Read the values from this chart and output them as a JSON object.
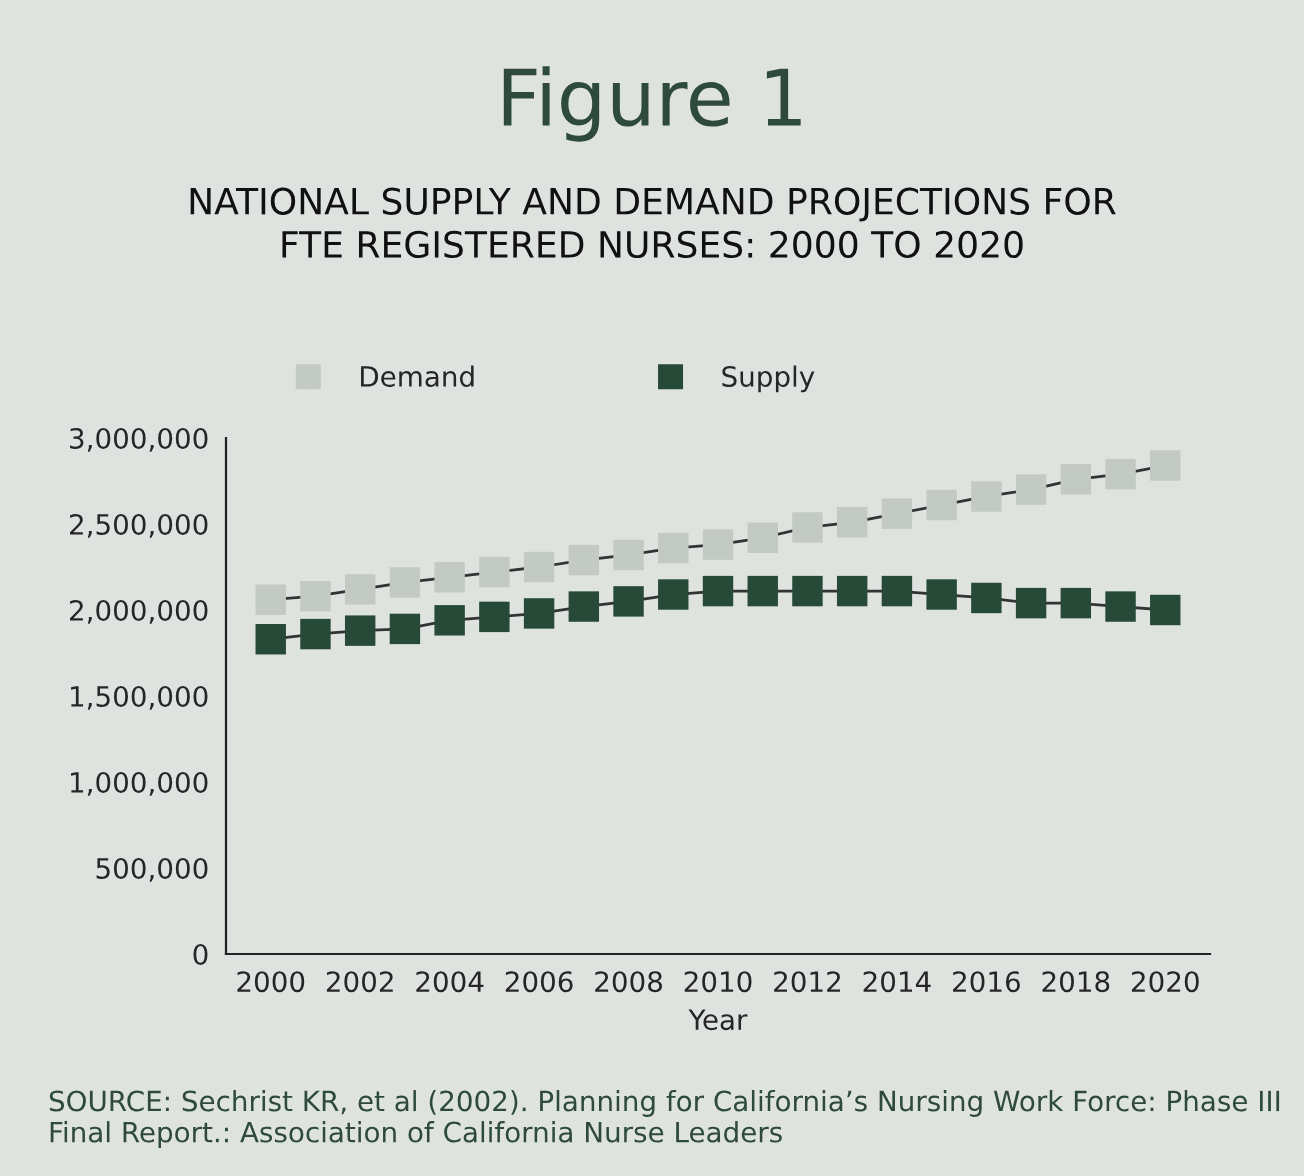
{
  "chart_data": {
    "type": "line",
    "title": "Figure 1",
    "subtitle": "NATIONAL SUPPLY AND DEMAND PROJECTIONS FOR\nFTE REGISTERED NURSES: 2000 TO 2020",
    "xlabel": "Year",
    "x": [
      2000,
      2001,
      2002,
      2003,
      2004,
      2005,
      2006,
      2007,
      2008,
      2009,
      2010,
      2011,
      2012,
      2013,
      2014,
      2015,
      2016,
      2017,
      2018,
      2019,
      2020
    ],
    "series": [
      {
        "name": "Demand",
        "color": "#c3c9c3",
        "values": [
          2060000,
          2080000,
          2120000,
          2160000,
          2190000,
          2220000,
          2250000,
          2290000,
          2320000,
          2360000,
          2380000,
          2420000,
          2480000,
          2510000,
          2560000,
          2610000,
          2660000,
          2700000,
          2760000,
          2790000,
          2840000
        ]
      },
      {
        "name": "Supply",
        "color": "#274a38",
        "values": [
          1830000,
          1860000,
          1880000,
          1890000,
          1940000,
          1960000,
          1980000,
          2020000,
          2050000,
          2090000,
          2110000,
          2110000,
          2110000,
          2110000,
          2110000,
          2090000,
          2070000,
          2040000,
          2040000,
          2020000,
          2000000
        ]
      }
    ],
    "xlim": [
      1999,
      2021
    ],
    "xticks": [
      2000,
      2002,
      2004,
      2006,
      2008,
      2010,
      2012,
      2014,
      2016,
      2018,
      2020
    ],
    "ylim": [
      0,
      3000000
    ],
    "yticks": [
      {
        "value": 0,
        "label": "0"
      },
      {
        "value": 500000,
        "label": "500,000"
      },
      {
        "value": 1000000,
        "label": "1,000,000"
      },
      {
        "value": 1500000,
        "label": "1,500,000"
      },
      {
        "value": 2000000,
        "label": "2,000,000"
      },
      {
        "value": 2500000,
        "label": "2,500,000"
      },
      {
        "value": 3000000,
        "label": "3,000,000"
      }
    ],
    "grid": false,
    "legend": "top",
    "marker": "square",
    "line_style": "solid",
    "annotations": [
      "SOURCE: Sechrist KR, et al (2002). Planning for California’s Nursing Work Force: Phase III Final Report.: Association of California Nurse Leaders"
    ]
  }
}
